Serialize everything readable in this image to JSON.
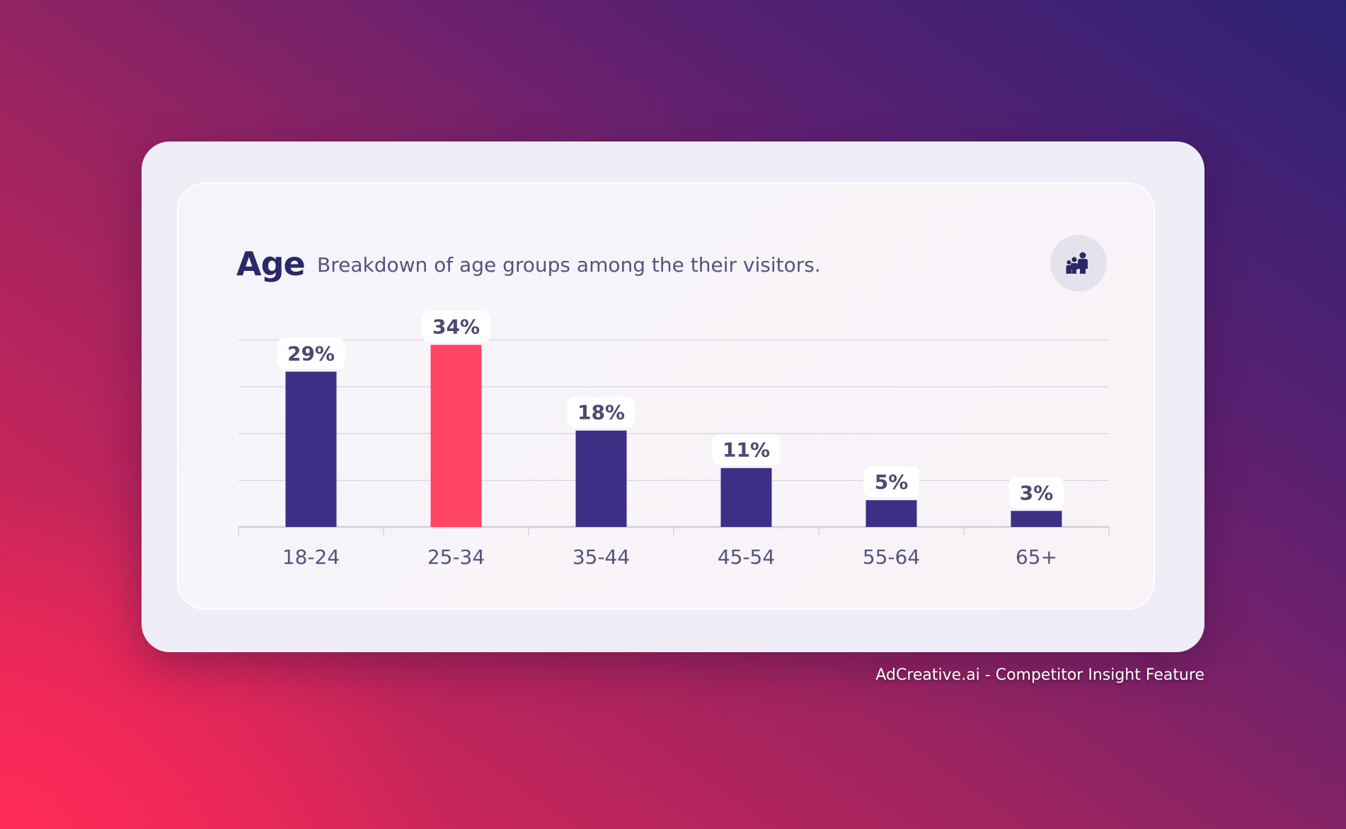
{
  "chart_data": {
    "type": "bar",
    "title": "Age",
    "subtitle": "Breakdown of age groups among the their visitors.",
    "categories": [
      "18-24",
      "25-34",
      "35-44",
      "45-54",
      "55-64",
      "65+"
    ],
    "values": [
      29,
      34,
      18,
      11,
      5,
      3
    ],
    "value_labels": [
      "29%",
      "34%",
      "18%",
      "11%",
      "5%",
      "3%"
    ],
    "highlight_index": 1,
    "colors": {
      "bar": "#3c2f86",
      "highlight": "#ff4466",
      "grid": "#dcd8e4"
    },
    "grid": true,
    "legend": "none"
  },
  "icon": {
    "name": "family-icon"
  },
  "footer": {
    "credit": "AdCreative.ai - Competitor Insight Feature"
  }
}
